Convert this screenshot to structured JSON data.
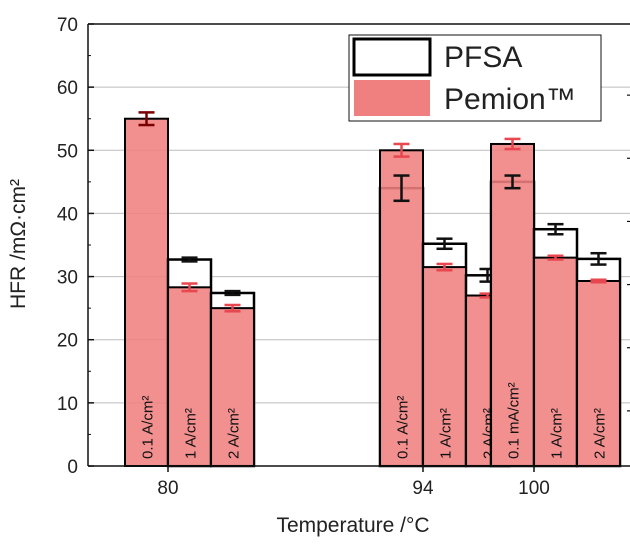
{
  "chart_data": {
    "type": "bar",
    "xlabel": "Temperature /°C",
    "ylabel": "HFR /mΩ·cm²",
    "ylim": [
      0,
      70
    ],
    "yticks": [
      0,
      10,
      20,
      30,
      40,
      50,
      60,
      70
    ],
    "grid": true,
    "legend_position": "top-right",
    "temperatures": [
      "80",
      "94",
      "100"
    ],
    "series": [
      {
        "name": "PFSA",
        "fill": "#ffffff",
        "stroke": "#000000",
        "errcolor": "#111111",
        "values": [
          null,
          32.7,
          27.4,
          44.0,
          35.2,
          30.2,
          45.0,
          37.5,
          32.8
        ],
        "errors": [
          null,
          0.3,
          0.3,
          2.0,
          0.8,
          1.0,
          1.0,
          0.8,
          0.9
        ]
      },
      {
        "name": "Pemion™",
        "fill": "#f08080",
        "stroke": "#000000",
        "errcolor": "#e8474f",
        "values": [
          55.0,
          28.3,
          25.0,
          50.0,
          31.5,
          27.0,
          51.0,
          33.0,
          29.3
        ],
        "errors": [
          1.0,
          0.6,
          0.5,
          1.0,
          0.5,
          0.3,
          0.8,
          0.3,
          0.2
        ]
      }
    ],
    "bar_labels": [
      "0.1 A/cm²",
      "1 A/cm²",
      "2 A/cm²",
      "0.1 A/cm²",
      "1 A/cm²",
      "2 A/cm²",
      "0.1 mA/cm²",
      "1 A/cm²",
      "2 A/cm²"
    ],
    "bar_groups": [
      0,
      0,
      0,
      1,
      1,
      1,
      2,
      2,
      2
    ],
    "colors": {
      "pemion": "#f08080",
      "pemion_error": "#e8474f",
      "pemion_error_dark": "#7a0000",
      "pfsa": "#ffffff",
      "grid": "#bdbdbd"
    }
  }
}
